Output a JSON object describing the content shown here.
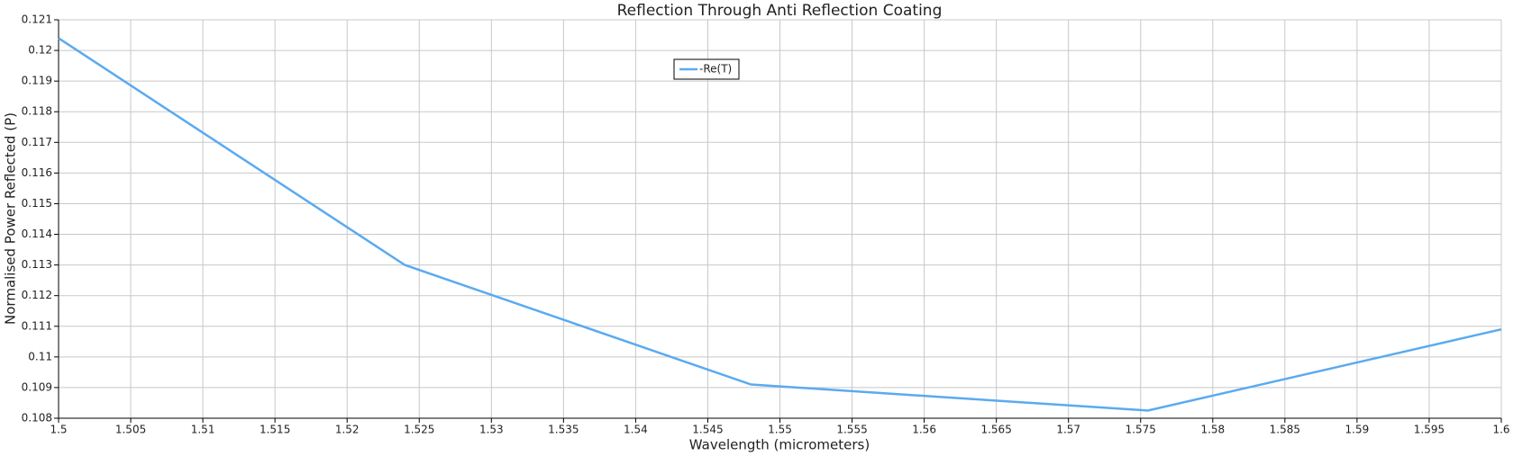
{
  "chart_data": {
    "type": "line",
    "title": "Reflection Through Anti Reflection Coating",
    "x_label": "Wavelength (micrometers)",
    "y_label": "Normalised Power Reflected (P)",
    "x": [
      1.5,
      1.524,
      1.548,
      1.5755,
      1.6
    ],
    "series": [
      {
        "name": "-Re(T)",
        "color": "#5aaaf0",
        "values": [
          0.1204,
          0.113,
          0.1091,
          0.10825,
          0.1109
        ]
      }
    ],
    "xlim": [
      1.5,
      1.6
    ],
    "xticks": [
      1.5,
      1.505,
      1.51,
      1.515,
      1.52,
      1.525,
      1.53,
      1.535,
      1.54,
      1.545,
      1.55,
      1.555,
      1.56,
      1.565,
      1.57,
      1.575,
      1.58,
      1.585,
      1.59,
      1.595,
      1.6
    ],
    "ylim": [
      0.108,
      0.121
    ],
    "yticks": [
      0.108,
      0.109,
      0.11,
      0.111,
      0.112,
      0.113,
      0.114,
      0.115,
      0.116,
      0.117,
      0.118,
      0.119,
      0.12,
      0.121
    ],
    "grid": true,
    "legend": "upper-center"
  }
}
